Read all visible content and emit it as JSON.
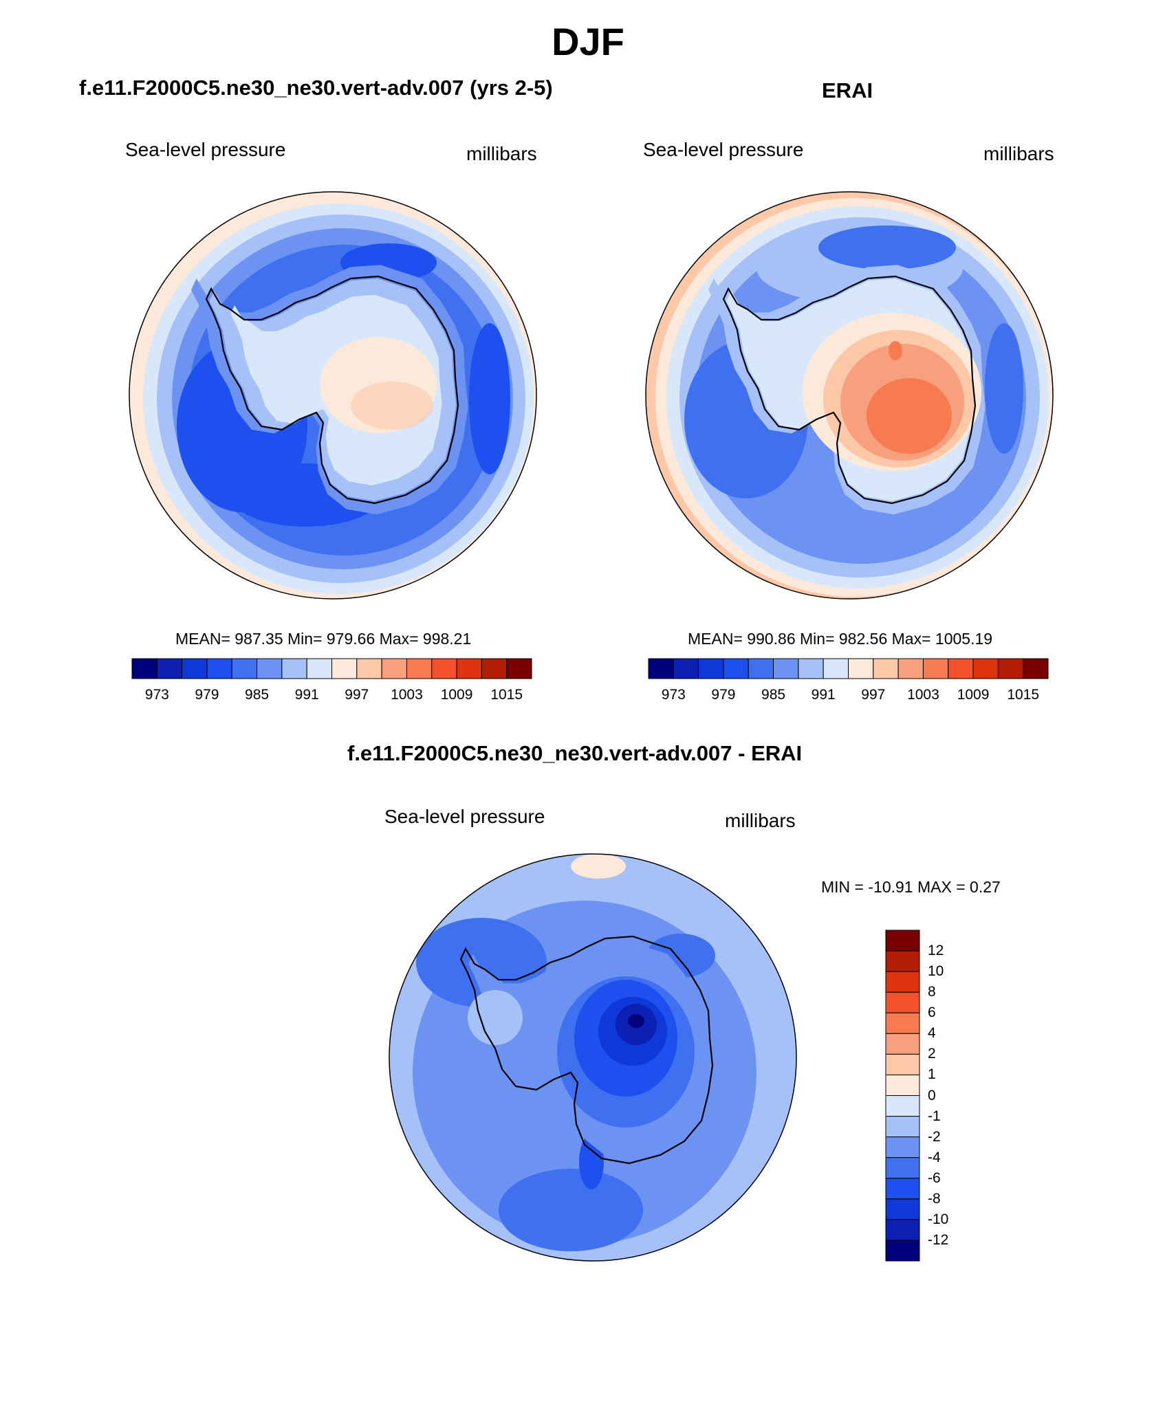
{
  "figure": {
    "title": "DJF",
    "panels": [
      {
        "id": "model",
        "header": "f.e11.F2000C5.ne30_ne30.vert-adv.007 (yrs 2-5)",
        "variable": "Sea-level pressure",
        "units": "millibars",
        "stats": "MEAN= 987.35  Min= 979.66  Max= 998.21"
      },
      {
        "id": "obs",
        "header": "ERAI",
        "variable": "Sea-level pressure",
        "units": "millibars",
        "stats": "MEAN= 990.86  Min= 982.56  Max= 1005.19"
      },
      {
        "id": "diff",
        "header": "f.e11.F2000C5.ne30_ne30.vert-adv.007 - ERAI",
        "variable": "Sea-level pressure",
        "units": "millibars",
        "stats": "MIN = -10.91 MAX =   0.27"
      }
    ],
    "field_colorbar": {
      "colors": [
        "#00007f",
        "#0c21b4",
        "#0f38d9",
        "#1e4fef",
        "#3f70f0",
        "#6c93f2",
        "#a6c1f8",
        "#d9e7fb",
        "#fde9da",
        "#fcc8a8",
        "#f8a07e",
        "#f77b50",
        "#f4502c",
        "#e0340f",
        "#b31d06",
        "#7a0000"
      ],
      "tick_labels": [
        "973",
        "979",
        "985",
        "991",
        "997",
        "1003",
        "1009",
        "1015"
      ]
    },
    "diff_colorbar": {
      "colors_top_to_bottom": [
        "#7a0000",
        "#b31d06",
        "#e0340f",
        "#f4502c",
        "#f77b50",
        "#f8a07e",
        "#fcc8a8",
        "#fde9da",
        "#d9e7fb",
        "#a6c1f8",
        "#6c93f2",
        "#3f70f0",
        "#1e4fef",
        "#0f38d9",
        "#0c21b4",
        "#00007f"
      ],
      "tick_labels_top_to_bottom": [
        "12",
        "10",
        "8",
        "6",
        "4",
        "2",
        "1",
        "0",
        "-1",
        "-2",
        "-4",
        "-6",
        "-8",
        "-10",
        "-12"
      ]
    }
  }
}
